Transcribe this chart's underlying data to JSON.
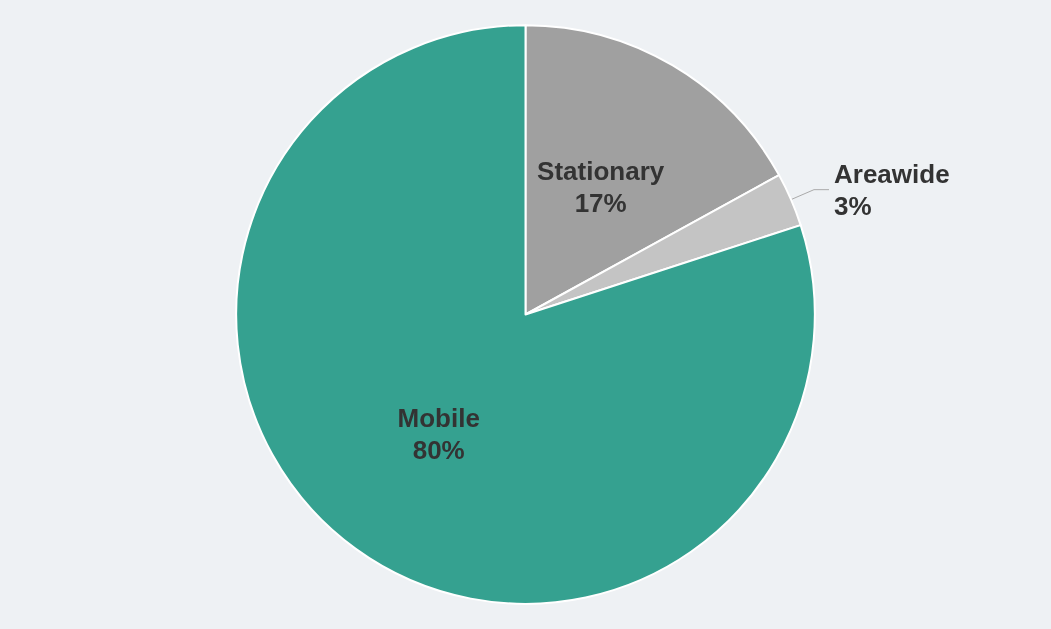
{
  "chart_data": {
    "type": "pie",
    "categories": [
      "Stationary",
      "Areawide",
      "Mobile"
    ],
    "values": [
      17,
      3,
      80
    ],
    "colors": [
      "#a0a0a0",
      "#c4c4c4",
      "#35a190"
    ],
    "value_labels": [
      "17%",
      "3%",
      "80%"
    ]
  }
}
